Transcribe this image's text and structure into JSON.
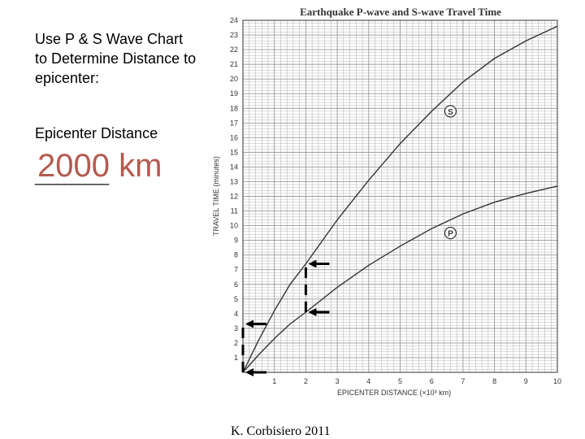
{
  "slide": {
    "instructions": "Use P & S Wave Chart to Determine Distance to epicenter:",
    "epicenter_label": "Epicenter Distance",
    "blank": "__________",
    "answer": "2000 km",
    "credit": "K. Corbisiero 2011"
  },
  "chart_data": {
    "type": "line",
    "title": "Earthquake P-wave and S-wave Travel Time",
    "xlabel": "EPICENTER DISTANCE (×10³ km)",
    "ylabel": "TRAVEL TIME (minutes)",
    "xlim": [
      0,
      10
    ],
    "ylim": [
      0,
      24
    ],
    "x_ticks": [
      "1",
      "2",
      "3",
      "4",
      "5",
      "6",
      "7",
      "8",
      "9",
      "10"
    ],
    "y_ticks": [
      "1",
      "2",
      "3",
      "4",
      "5",
      "6",
      "7",
      "8",
      "9",
      "10",
      "11",
      "12",
      "13",
      "14",
      "15",
      "16",
      "17",
      "18",
      "19",
      "20",
      "21",
      "22",
      "23",
      "24"
    ],
    "grid": true,
    "series": [
      {
        "name": "S",
        "x": [
          0,
          0.5,
          1,
          1.5,
          2,
          3,
          4,
          5,
          6,
          7,
          8,
          9,
          10
        ],
        "y": [
          0,
          2.2,
          4.2,
          6.0,
          7.4,
          10.4,
          13.1,
          15.6,
          17.8,
          19.8,
          21.4,
          22.6,
          23.6
        ]
      },
      {
        "name": "P",
        "x": [
          0,
          0.5,
          1,
          1.5,
          2,
          3,
          4,
          5,
          6,
          7,
          8,
          9,
          10
        ],
        "y": [
          0,
          1.2,
          2.3,
          3.3,
          4.1,
          5.8,
          7.3,
          8.6,
          9.8,
          10.8,
          11.6,
          12.2,
          12.7
        ]
      }
    ],
    "annotations": {
      "s_marker": "S",
      "p_marker": "P",
      "reading_x": 2,
      "reading_s_y": 7.4,
      "reading_p_y": 4.1,
      "difference_minutes": 3.3
    },
    "colors": {
      "curve": "#333333",
      "grid": "#9a9a9a",
      "arrow": "#000000"
    }
  }
}
